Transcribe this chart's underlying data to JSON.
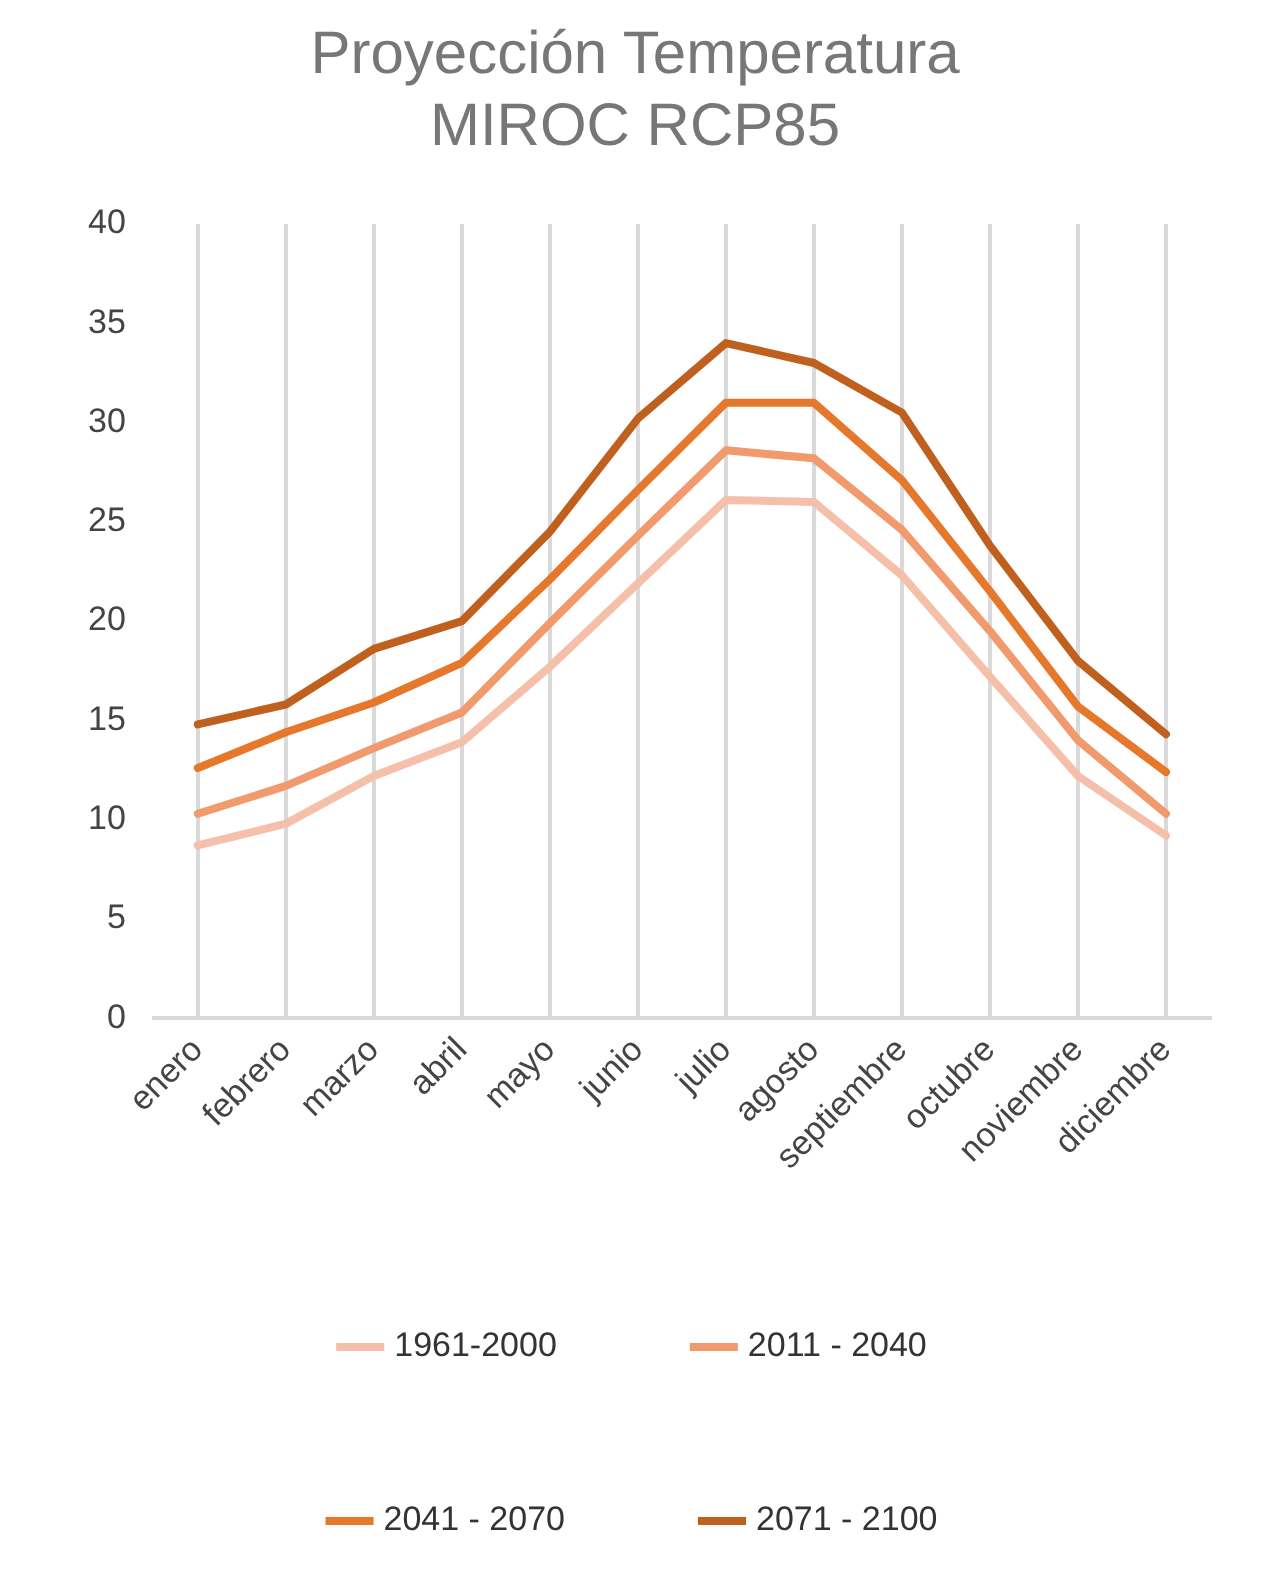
{
  "chart_data": {
    "type": "line",
    "title": [
      "Proyección Temperatura",
      "MIROC RCP85"
    ],
    "categories": [
      "enero",
      "febrero",
      "marzo",
      "abril",
      "mayo",
      "junio",
      "julio",
      "agosto",
      "septiembre",
      "octubre",
      "noviembre",
      "diciembre"
    ],
    "series": [
      {
        "name": "1961-2000",
        "color": "#f4c0aa",
        "values": [
          8.7,
          9.8,
          12.2,
          13.9,
          17.7,
          21.9,
          26.1,
          26.0,
          22.3,
          17.2,
          12.2,
          9.2
        ]
      },
      {
        "name": "2011 - 2040",
        "color": "#f09a6d",
        "values": [
          10.3,
          11.7,
          13.6,
          15.4,
          19.9,
          24.3,
          28.6,
          28.2,
          24.6,
          19.5,
          14.0,
          10.3
        ]
      },
      {
        "name": "2041 - 2070",
        "color": "#e6782c",
        "values": [
          12.6,
          14.4,
          15.9,
          17.9,
          22.1,
          26.6,
          31.0,
          31.0,
          27.1,
          21.5,
          15.7,
          12.4
        ]
      },
      {
        "name": "2071 - 2100",
        "color": "#c0601f",
        "values": [
          14.8,
          15.8,
          18.6,
          20.0,
          24.5,
          30.2,
          34.0,
          33.0,
          30.5,
          23.8,
          18.0,
          14.3
        ]
      }
    ],
    "ylim": [
      0,
      40
    ],
    "yticks": [
      0,
      5,
      10,
      15,
      20,
      25,
      30,
      35,
      40
    ],
    "grid": "x",
    "legend": "bottom",
    "marker": "none",
    "line_style": "solid"
  }
}
